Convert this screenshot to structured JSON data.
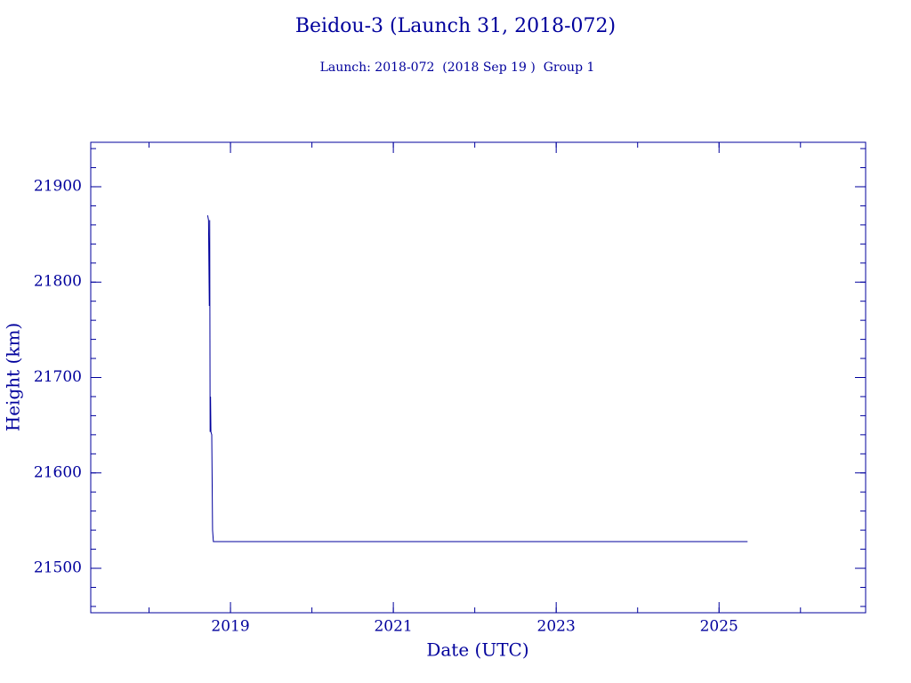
{
  "chart_data": {
    "type": "line",
    "title": "Beidou-3 (Launch 31, 2018-072)",
    "subtitle": "Launch: 2018-072  (2018 Sep 19 )  Group 1",
    "x_label": "Date (UTC)",
    "y_label": "Height (km)",
    "color": "#00009c",
    "x": [
      2018.72,
      2018.73,
      2018.74,
      2018.745,
      2018.75,
      2018.755,
      2018.76,
      2018.77,
      2018.78,
      2018.79,
      2025.35
    ],
    "values": [
      21870,
      21865,
      21775,
      21865,
      21643,
      21680,
      21643,
      21640,
      21540,
      21528,
      21528
    ],
    "xlim": [
      2017.284,
      2026.8
    ],
    "ylim": [
      21453.4,
      21946.6
    ],
    "xticks": [
      2019,
      2021,
      2023,
      2025
    ],
    "yticks": [
      21500,
      21600,
      21700,
      21800,
      21900
    ],
    "xminor_step": 1,
    "yminor_step": 20
  }
}
